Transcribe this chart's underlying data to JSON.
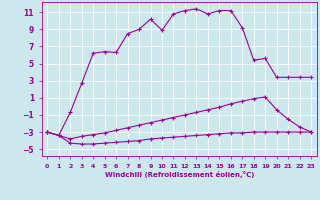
{
  "xlabel": "Windchill (Refroidissement éolien,°C)",
  "bg_color": "#cce8ed",
  "grid_color": "#ffffff",
  "line_color": "#990099",
  "xlim": [
    -0.5,
    23.5
  ],
  "ylim": [
    -5.8,
    12.2
  ],
  "xticks": [
    0,
    1,
    2,
    3,
    4,
    5,
    6,
    7,
    8,
    9,
    10,
    11,
    12,
    13,
    14,
    15,
    16,
    17,
    18,
    19,
    20,
    21,
    22,
    23
  ],
  "yticks": [
    -5,
    -3,
    -1,
    1,
    3,
    5,
    7,
    9,
    11
  ],
  "series": [
    {
      "x": [
        0,
        1,
        2,
        3,
        4,
        5,
        6,
        7,
        8,
        9,
        10,
        11,
        12,
        13,
        14,
        15,
        16,
        17,
        18,
        19,
        20,
        21,
        22,
        23
      ],
      "y": [
        -3.0,
        -3.4,
        -4.3,
        -4.4,
        -4.4,
        -4.3,
        -4.2,
        -4.1,
        -4.0,
        -3.8,
        -3.7,
        -3.6,
        -3.5,
        -3.4,
        -3.3,
        -3.2,
        -3.1,
        -3.1,
        -3.0,
        -3.0,
        -3.0,
        -3.0,
        -3.0,
        -3.0
      ]
    },
    {
      "x": [
        0,
        1,
        2,
        3,
        4,
        5,
        6,
        7,
        8,
        9,
        10,
        11,
        12,
        13,
        14,
        15,
        16,
        17,
        18,
        19,
        20,
        21,
        22,
        23
      ],
      "y": [
        -3.0,
        -3.4,
        -3.8,
        -3.5,
        -3.3,
        -3.1,
        -2.8,
        -2.5,
        -2.2,
        -1.9,
        -1.6,
        -1.3,
        -1.0,
        -0.7,
        -0.4,
        -0.1,
        0.3,
        0.6,
        0.9,
        1.1,
        -0.4,
        -1.5,
        -2.4,
        -3.0
      ]
    },
    {
      "x": [
        0,
        1,
        2,
        3,
        4,
        5,
        6,
        7,
        8,
        9,
        10,
        11,
        12,
        13,
        14,
        15,
        16,
        17,
        18,
        19,
        20,
        21,
        22,
        23
      ],
      "y": [
        -3.0,
        -3.4,
        -0.7,
        2.7,
        6.2,
        6.4,
        6.3,
        8.5,
        9.0,
        10.2,
        8.9,
        10.8,
        11.2,
        11.4,
        10.8,
        11.2,
        11.2,
        9.2,
        5.4,
        5.6,
        3.4,
        3.4,
        3.4,
        3.4
      ]
    }
  ]
}
